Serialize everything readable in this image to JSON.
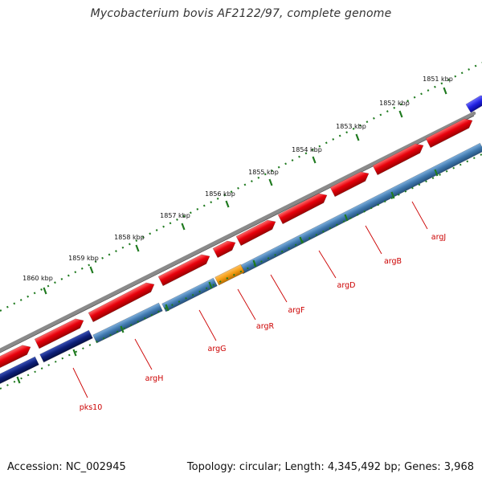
{
  "title": "Mycobacterium bovis AF2122/97, complete genome",
  "footer": {
    "accession": "Accession: NC_002945",
    "summary": "Topology: circular; Length: 4,345,492 bp; Genes: 3,968"
  },
  "tick_labels": [
    "1851 kbp",
    "1852 kbp",
    "1853 kbp",
    "1854 kbp",
    "1855 kbp",
    "1856 kbp",
    "1857 kbp",
    "1858 kbp",
    "1859 kbp",
    "1860 kbp"
  ],
  "gene_labels": [
    "argJ",
    "argB",
    "argD",
    "argF",
    "argR",
    "argG",
    "argH",
    "pks10"
  ],
  "colors": {
    "forward_gene": "#e8000b",
    "reverse_gene": "#3f78ae",
    "reverse_gene_dark": "#0c1e78",
    "regulator_gene": "#f39c12",
    "blue_feature": "#1f1fe0",
    "backbone": "#8a8a8a",
    "ticks": "#1f7a1f",
    "labels": "#cc0000"
  }
}
